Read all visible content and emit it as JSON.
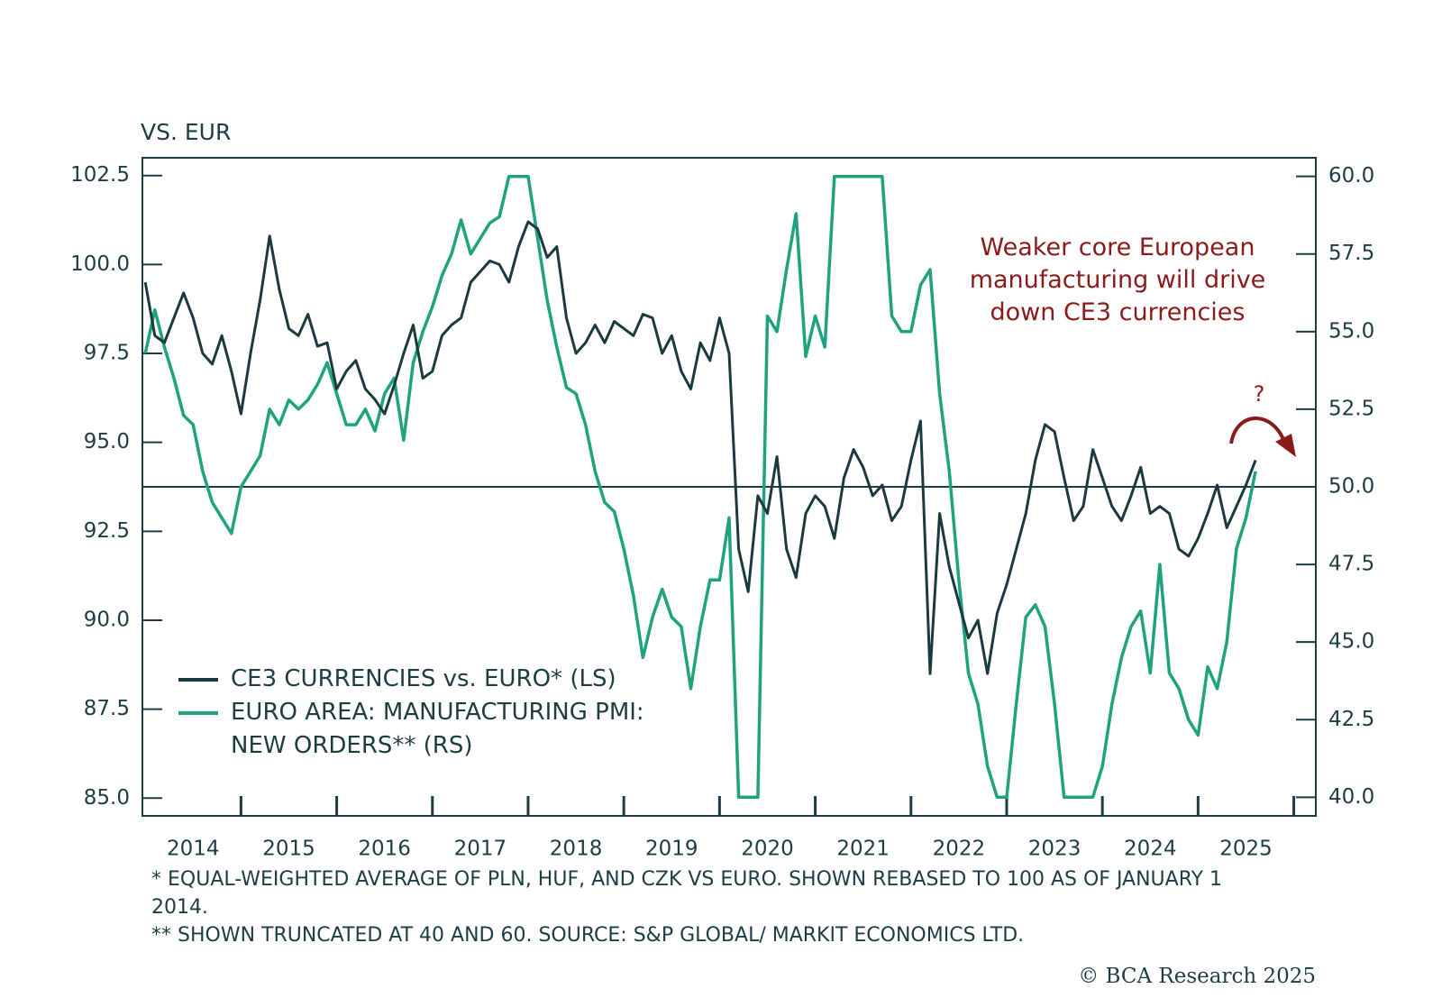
{
  "chart_data": {
    "type": "line",
    "y_label": "VS. EUR",
    "x": [
      2014.0,
      2014.1,
      2014.2,
      2014.3,
      2014.4,
      2014.5,
      2014.6,
      2014.7,
      2014.8,
      2014.9,
      2015.0,
      2015.1,
      2015.2,
      2015.3,
      2015.4,
      2015.5,
      2015.6,
      2015.7,
      2015.8,
      2015.9,
      2016.0,
      2016.1,
      2016.2,
      2016.3,
      2016.4,
      2016.5,
      2016.6,
      2016.7,
      2016.8,
      2016.9,
      2017.0,
      2017.1,
      2017.2,
      2017.3,
      2017.4,
      2017.5,
      2017.6,
      2017.7,
      2017.8,
      2017.9,
      2018.0,
      2018.1,
      2018.2,
      2018.3,
      2018.4,
      2018.5,
      2018.6,
      2018.7,
      2018.8,
      2018.9,
      2019.0,
      2019.1,
      2019.2,
      2019.3,
      2019.4,
      2019.5,
      2019.6,
      2019.7,
      2019.8,
      2019.9,
      2020.0,
      2020.1,
      2020.2,
      2020.3,
      2020.4,
      2020.5,
      2020.6,
      2020.7,
      2020.8,
      2020.9,
      2021.0,
      2021.1,
      2021.2,
      2021.3,
      2021.4,
      2021.5,
      2021.6,
      2021.7,
      2021.8,
      2021.9,
      2022.0,
      2022.1,
      2022.2,
      2022.3,
      2022.4,
      2022.5,
      2022.6,
      2022.7,
      2022.8,
      2022.9,
      2023.0,
      2023.1,
      2023.2,
      2023.3,
      2023.4,
      2023.5,
      2023.6,
      2023.7,
      2023.8,
      2023.9,
      2024.0,
      2024.1,
      2024.2,
      2024.3,
      2024.4,
      2024.5,
      2024.6,
      2024.7,
      2024.8,
      2024.9,
      2025.0,
      2025.1,
      2025.2,
      2025.3,
      2025.4,
      2025.5,
      2025.6
    ],
    "series": [
      {
        "name": "CE3 CURRENCIES vs. EURO* (LS)",
        "color": "#1b3a3f",
        "axis": "y",
        "values": [
          99.5,
          98.0,
          97.8,
          98.5,
          99.2,
          98.5,
          97.5,
          97.2,
          98.0,
          97.0,
          95.8,
          97.5,
          99.0,
          100.8,
          99.3,
          98.2,
          98.0,
          98.6,
          97.7,
          97.8,
          96.5,
          97.0,
          97.3,
          96.5,
          96.2,
          95.8,
          96.6,
          97.5,
          98.3,
          96.8,
          97.0,
          98.0,
          98.3,
          98.5,
          99.5,
          99.8,
          100.1,
          100.0,
          99.5,
          100.5,
          101.2,
          101.0,
          100.2,
          100.5,
          98.5,
          97.5,
          97.8,
          98.3,
          97.8,
          98.4,
          98.2,
          98.0,
          98.6,
          98.5,
          97.5,
          98.0,
          97.0,
          96.5,
          97.8,
          97.3,
          98.5,
          97.5,
          92.0,
          90.8,
          93.5,
          93.0,
          94.6,
          92.0,
          91.2,
          93.0,
          93.5,
          93.2,
          92.3,
          94.0,
          94.8,
          94.3,
          93.5,
          93.8,
          92.8,
          93.2,
          94.5,
          95.6,
          88.5,
          93.0,
          91.5,
          90.5,
          89.5,
          90.0,
          88.5,
          90.2,
          91.0,
          92.0,
          93.0,
          94.5,
          95.5,
          95.3,
          94.0,
          92.8,
          93.2,
          94.8,
          94.0,
          93.2,
          92.8,
          93.5,
          94.3,
          93.0,
          93.2,
          93.0,
          92.0,
          91.8,
          92.3,
          93.0,
          93.8,
          92.6,
          93.2,
          93.8,
          94.5
        ]
      },
      {
        "name": "EURO AREA: MANUFACTURING PMI: NEW ORDERS** (RS)",
        "color": "#1fa37f",
        "axis": "y2",
        "values": [
          54.3,
          55.7,
          54.5,
          53.5,
          52.3,
          52.0,
          50.5,
          49.5,
          49.0,
          48.5,
          50.0,
          50.5,
          51.0,
          52.5,
          52.0,
          52.8,
          52.5,
          52.8,
          53.3,
          54.0,
          53.0,
          52.0,
          52.0,
          52.5,
          51.8,
          53.0,
          53.5,
          51.5,
          54.0,
          55.0,
          55.8,
          56.8,
          57.5,
          58.6,
          57.5,
          58.0,
          58.5,
          58.7,
          60.0,
          60.0,
          60.0,
          58.0,
          56.0,
          54.5,
          53.2,
          53.0,
          52.0,
          50.5,
          49.5,
          49.2,
          48.0,
          46.5,
          44.5,
          45.8,
          46.7,
          45.8,
          45.5,
          43.5,
          45.5,
          47.0,
          47.0,
          49.0,
          40.0,
          40.0,
          40.0,
          55.5,
          55.0,
          57.0,
          58.8,
          54.2,
          55.5,
          54.5,
          60.0,
          60.0,
          60.0,
          60.0,
          60.0,
          60.0,
          55.5,
          55.0,
          55.0,
          56.5,
          57.0,
          53.0,
          50.5,
          47.0,
          44.0,
          43.0,
          41.0,
          40.0,
          40.0,
          43.0,
          45.8,
          46.2,
          45.5,
          43.0,
          40.0,
          40.0,
          40.0,
          40.0,
          41.0,
          43.0,
          44.5,
          45.5,
          46.0,
          44.0,
          47.5,
          44.0,
          43.5,
          42.5,
          42.0,
          44.2,
          43.5,
          45.0,
          48.0,
          49.0,
          50.5
        ]
      }
    ],
    "xlim": [
      2013.97,
      2026.23
    ],
    "xticks": [
      {
        "value": 2014.5,
        "label": "2014"
      },
      {
        "value": 2015.5,
        "label": "2015"
      },
      {
        "value": 2016.5,
        "label": "2016"
      },
      {
        "value": 2017.5,
        "label": "2017"
      },
      {
        "value": 2018.5,
        "label": "2018"
      },
      {
        "value": 2019.5,
        "label": "2019"
      },
      {
        "value": 2020.5,
        "label": "2020"
      },
      {
        "value": 2021.5,
        "label": "2021"
      },
      {
        "value": 2022.5,
        "label": "2022"
      },
      {
        "value": 2023.5,
        "label": "2023"
      },
      {
        "value": 2024.5,
        "label": "2024"
      },
      {
        "value": 2025.5,
        "label": "2025"
      }
    ],
    "x_minor_ticks": [
      2015,
      2016,
      2017,
      2018,
      2019,
      2020,
      2021,
      2022,
      2023,
      2024,
      2025,
      2026
    ],
    "ylim": [
      84.5,
      103.0
    ],
    "yticks": [
      {
        "value": 85,
        "label": "85.0"
      },
      87.5,
      {
        "value": 90,
        "label": "90.0"
      },
      92.5,
      {
        "value": 95,
        "label": "95.0"
      },
      97.5,
      {
        "value": 100,
        "label": "100.0"
      },
      102.5
    ],
    "y2lim": [
      39.4,
      60.6
    ],
    "y2ticks": [
      {
        "value": 40,
        "label": "40.0"
      },
      42.5,
      {
        "value": 45,
        "label": "45.0"
      },
      47.5,
      {
        "value": 50,
        "label": "50.0"
      },
      52.5,
      {
        "value": 55,
        "label": "55.0"
      },
      57.5,
      {
        "value": 60,
        "label": "60.0"
      }
    ],
    "y2_reference_line": 50,
    "legend": "lower left",
    "annotation": "Weaker core European manufacturing will drive down CE3 currencies",
    "annotation_color": "#8b1a1a",
    "arrow_label": "?",
    "footnotes": [
      "* EQUAL-WEIGHTED AVERAGE OF PLN, HUF, AND CZK VS EURO. SHOWN REBASED TO 100 AS OF JANUARY 1 2014.",
      "** SHOWN TRUNCATED AT 40 AND 60. SOURCE: S&P GLOBAL/ MARKIT ECONOMICS LTD."
    ],
    "source": "© BCA Research 2025"
  }
}
